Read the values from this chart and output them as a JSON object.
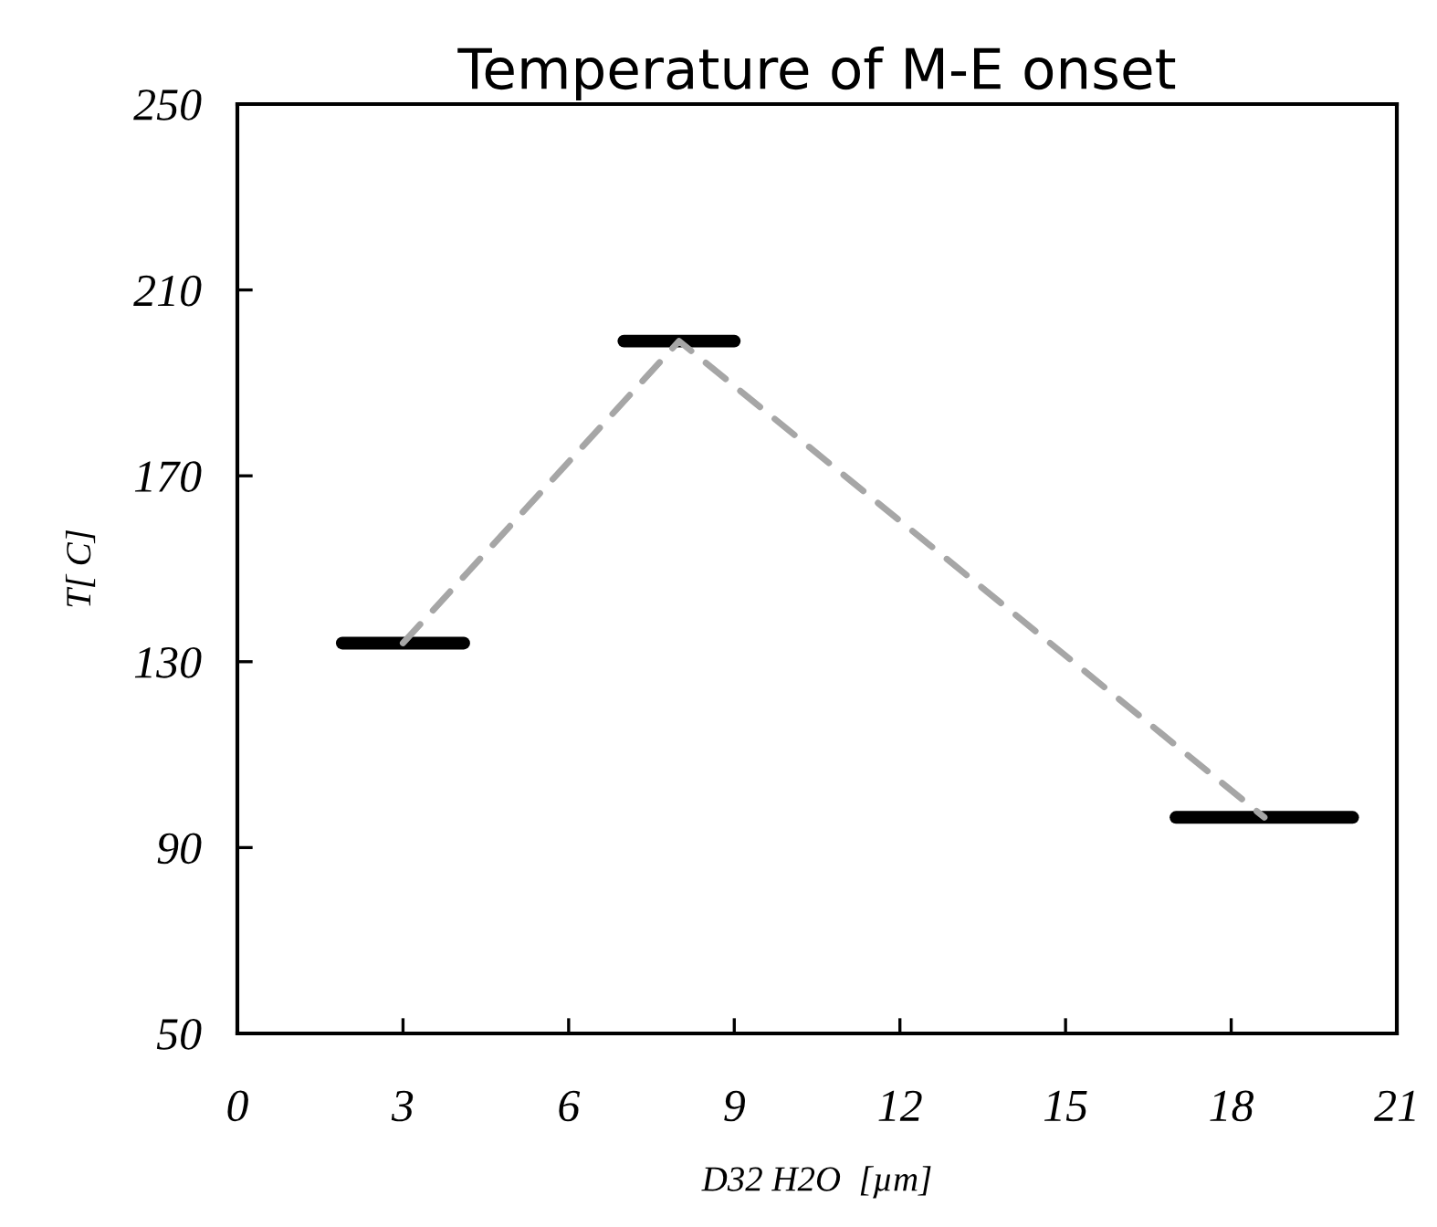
{
  "chart_data": {
    "type": "line",
    "title": "Temperature of M-E onset",
    "xlabel": "D32 H2O  [µm]",
    "ylabel": "T[ C]",
    "series": [
      {
        "color": "#a6a6a6",
        "line_style": "dashed",
        "marker": "none",
        "x": [
          3,
          8,
          18.6
        ],
        "values": [
          134,
          199,
          96.5
        ],
        "xerrors": [
          1.1,
          1,
          1.6
        ],
        "colors": [
          "#000000",
          "#000000",
          "#000000"
        ]
      }
    ],
    "xlim": [
      0,
      21
    ],
    "xticks": [
      0,
      3,
      6,
      9,
      12,
      15,
      18,
      21
    ],
    "ylim": [
      50,
      250
    ],
    "yticks": [
      50,
      90,
      130,
      170,
      210,
      250
    ],
    "grid": false,
    "legend": false
  }
}
